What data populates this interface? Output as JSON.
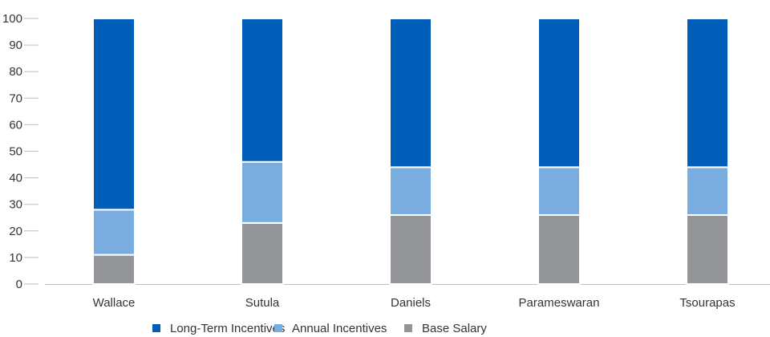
{
  "chart_data": {
    "type": "bar",
    "stacked": true,
    "categories": [
      "Wallace",
      "Sutula",
      "Daniels",
      "Parameswaran",
      "Tsourapas"
    ],
    "series": [
      {
        "name": "Base Salary",
        "values": [
          11,
          23,
          26,
          26,
          26
        ],
        "color": "#939598"
      },
      {
        "name": "Annual Incentives",
        "values": [
          17,
          23,
          18,
          18,
          18
        ],
        "color": "#79ADE0"
      },
      {
        "name": "Long-Term Incentives",
        "values": [
          72,
          54,
          56,
          56,
          56
        ],
        "color": "#005EB8"
      }
    ],
    "legend_order": [
      "Long-Term Incentives",
      "Annual Incentives",
      "Base Salary"
    ],
    "yticks": [
      0,
      10,
      20,
      30,
      40,
      50,
      60,
      70,
      80,
      90,
      100
    ],
    "ylim": [
      0,
      100
    ],
    "grid": false,
    "legend_position": "bottom"
  }
}
